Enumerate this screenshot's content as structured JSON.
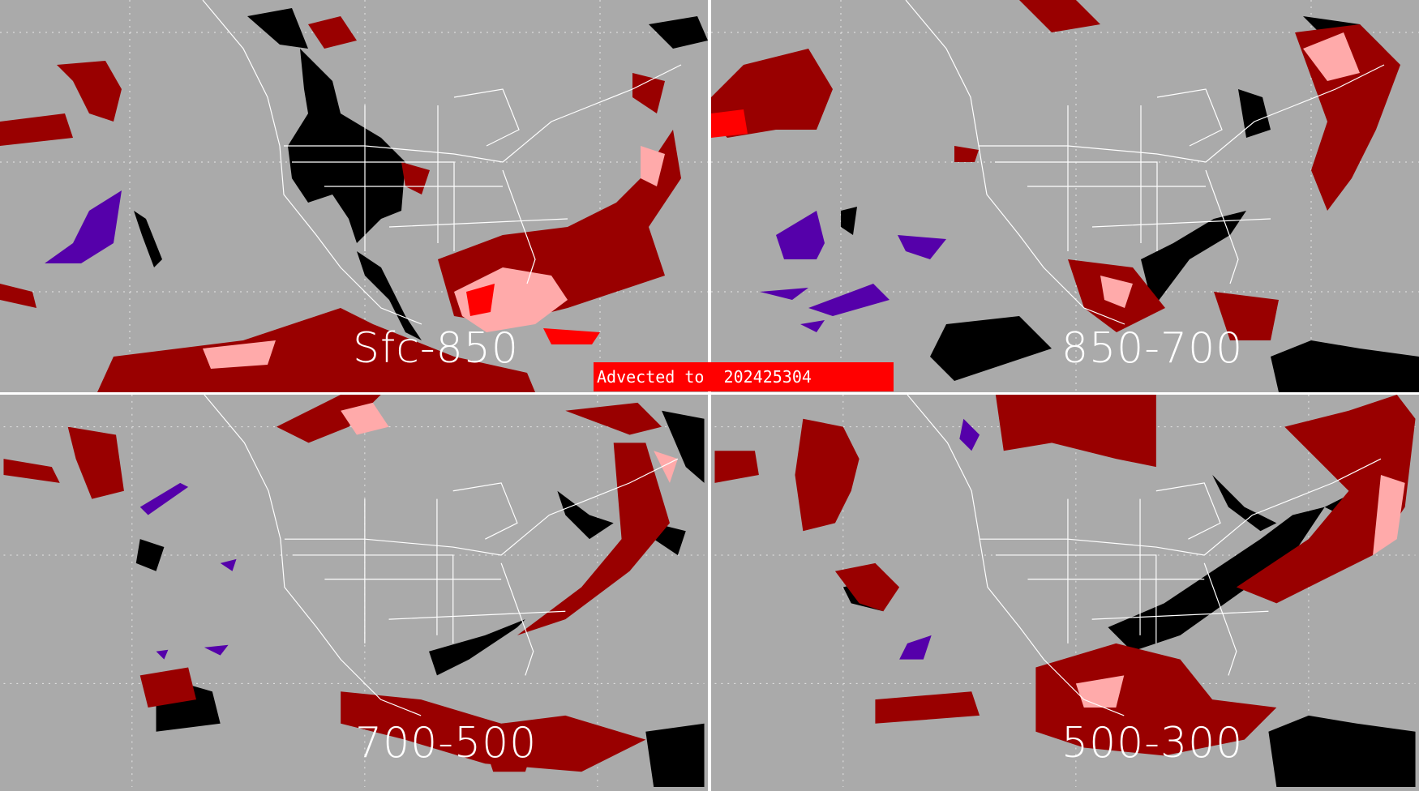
{
  "banner": {
    "text": "Advected to  202425304"
  },
  "panels": [
    {
      "id": "tl",
      "layer_label": "Sfc-850"
    },
    {
      "id": "tr",
      "layer_label": "850-700"
    },
    {
      "id": "bl",
      "layer_label": "700-500"
    },
    {
      "id": "br",
      "layer_label": "500-300"
    }
  ],
  "colors": {
    "background": "#aaaaaa",
    "dark_red": "#990000",
    "pink": "#ffaaaa",
    "red": "#ff0000",
    "black": "#000000",
    "purple": "#5500aa",
    "coastline": "#ffffff",
    "divider": "#ffffff"
  }
}
